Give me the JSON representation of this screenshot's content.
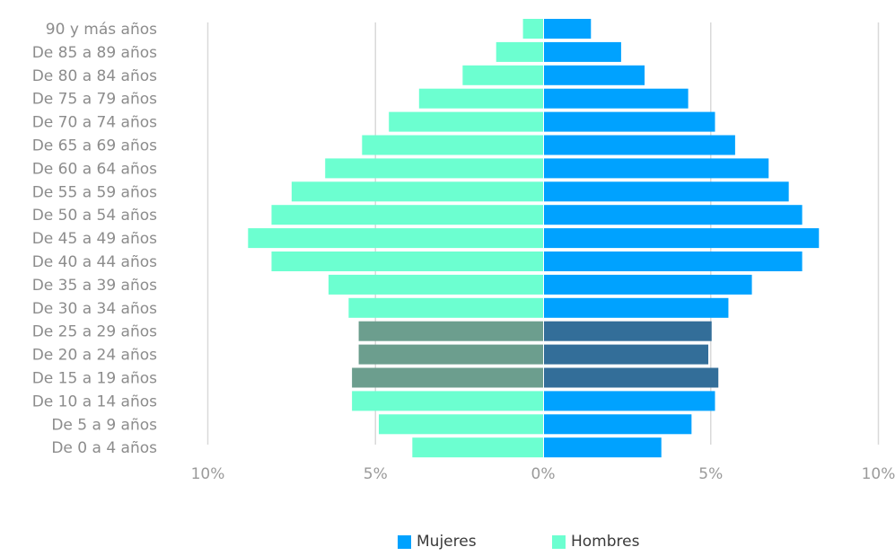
{
  "chart_data": {
    "type": "bar",
    "orientation": "horizontal",
    "categories": [
      "90 y más años",
      "De 85 a 89 años",
      "De 80 a 84 años",
      "De 75 a 79 años",
      "De 70 a 74 años",
      "De 65 a 69 años",
      "De 60 a 64 años",
      "De 55 a 59 años",
      "De 50 a 54 años",
      "De 45 a 49 años",
      "De 40 a 44 años",
      "De 35 a 39 años",
      "De 30 a 34 años",
      "De 25 a 29 años",
      "De 20 a 24 años",
      "De 15 a 19 años",
      "De 10 a 14 años",
      "De 5 a 9 años",
      "De 0 a 4 años"
    ],
    "series": [
      {
        "name": "Mujeres",
        "color": "#00a2ff",
        "highlight_color": "#336e99",
        "values": [
          1.4,
          2.3,
          3.0,
          4.3,
          5.1,
          5.7,
          6.7,
          7.3,
          7.7,
          8.2,
          7.7,
          6.2,
          5.5,
          5.0,
          4.9,
          5.2,
          5.1,
          4.4,
          3.5
        ]
      },
      {
        "name": "Hombres",
        "color": "#6cffd0",
        "highlight_color": "#6c9e8e",
        "values": [
          0.6,
          1.4,
          2.4,
          3.7,
          4.6,
          5.4,
          6.5,
          7.5,
          8.1,
          8.8,
          8.1,
          6.4,
          5.8,
          5.5,
          5.5,
          5.7,
          5.7,
          4.9,
          3.9
        ]
      }
    ],
    "highlighted_categories": [
      "De 25 a 29 años",
      "De 20 a 24 años",
      "De 15 a 19 años"
    ],
    "x_ticks": [
      -10,
      -5,
      0,
      5,
      10
    ],
    "x_tick_labels": [
      "10%",
      "5%",
      "0%",
      "5%",
      "10%"
    ],
    "xlim": [
      -10,
      10
    ],
    "grid": true,
    "legend_position": "bottom"
  }
}
